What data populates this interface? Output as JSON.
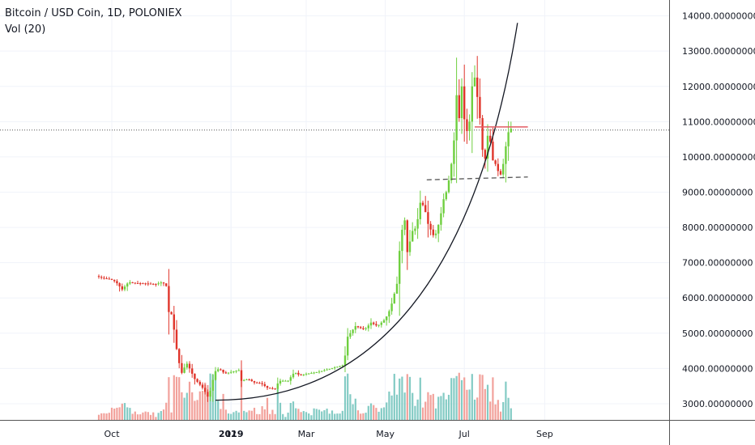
{
  "header": {
    "title": "Bitcoin / USD Coin, 1D, POLONIEX",
    "indicator": "Vol (20)"
  },
  "chart_data": {
    "type": "candlestick",
    "ylim": [
      2540,
      14450
    ],
    "y_ticks": [
      "14000.00000000",
      "13000.00000000",
      "12000.00000000",
      "11000.00000000",
      "10000.00000000",
      "9000.00000000",
      "8000.00000000",
      "7000.00000000",
      "6000.00000000",
      "5000.00000000",
      "4000.00000000",
      "3000.00000000"
    ],
    "x_ticks": [
      "Oct",
      "12",
      "2019",
      "Mar",
      "May",
      "Jul",
      "Sep"
    ],
    "bold_x_ticks": [
      "2019"
    ],
    "grid": true,
    "last_price": 10760,
    "colors": {
      "up": "#6fcf3f",
      "down": "#e0352b",
      "vol_up": "#83cbc4",
      "vol_down": "#f2a19b",
      "trend": "#131722",
      "resistance": "#e35b63",
      "support": "#555555"
    },
    "price_path": [
      [
        "Sep 20",
        6620
      ],
      [
        "Sep 25",
        6560
      ],
      [
        "Oct 1",
        6530
      ],
      [
        "Oct 5",
        6460
      ],
      [
        "Oct 10",
        6240
      ],
      [
        "Oct 15",
        6450
      ],
      [
        "Oct 20",
        6420
      ],
      [
        "Oct 28",
        6410
      ],
      [
        "Nov 5",
        6390
      ],
      [
        "Nov 10",
        6450
      ],
      [
        "Nov 14",
        6300
      ],
      [
        "Nov 15",
        5600
      ],
      [
        "Nov 18",
        5500
      ],
      [
        "Nov 20",
        4700
      ],
      [
        "Nov 22",
        4400
      ],
      [
        "Nov 24",
        3900
      ],
      [
        "Nov 26",
        3850
      ],
      [
        "Nov 28",
        4200
      ],
      [
        "Dec 1",
        4000
      ],
      [
        "Dec 5",
        3700
      ],
      [
        "Dec 10",
        3500
      ],
      [
        "Dec 12",
        3400
      ],
      [
        "Dec 15",
        3200
      ],
      [
        "Dec 18",
        3450
      ],
      [
        "Dec 20",
        3900
      ],
      [
        "Dec 24",
        4000
      ],
      [
        "Dec 28",
        3850
      ],
      [
        "Jan 2",
        3900
      ],
      [
        "Jan 8",
        3950
      ],
      [
        "Jan 10",
        3650
      ],
      [
        "Jan 15",
        3700
      ],
      [
        "Jan 20",
        3600
      ],
      [
        "Jan 25",
        3580
      ],
      [
        "Jan 30",
        3450
      ],
      [
        "Feb 5",
        3420
      ],
      [
        "Feb 8",
        3650
      ],
      [
        "Feb 15",
        3650
      ],
      [
        "Feb 20",
        3900
      ],
      [
        "Feb 24",
        3800
      ],
      [
        "Mar 1",
        3850
      ],
      [
        "Mar 10",
        3900
      ],
      [
        "Mar 20",
        4000
      ],
      [
        "Mar 30",
        4100
      ],
      [
        "Apr 2",
        4900
      ],
      [
        "Apr 8",
        5200
      ],
      [
        "Apr 15",
        5100
      ],
      [
        "Apr 20",
        5300
      ],
      [
        "Apr 25",
        5200
      ],
      [
        "May 1",
        5400
      ],
      [
        "May 5",
        5700
      ],
      [
        "May 10",
        6400
      ],
      [
        "May 13",
        7800
      ],
      [
        "May 16",
        8200
      ],
      [
        "May 18",
        7300
      ],
      [
        "May 22",
        7900
      ],
      [
        "May 25",
        8000
      ],
      [
        "May 28",
        8700
      ],
      [
        "May 31",
        8600
      ],
      [
        "Jun 3",
        8100
      ],
      [
        "Jun 8",
        7700
      ],
      [
        "Jun 12",
        8200
      ],
      [
        "Jun 15",
        8800
      ],
      [
        "Jun 18",
        9100
      ],
      [
        "Jun 21",
        9800
      ],
      [
        "Jun 24",
        10800
      ],
      [
        "Jun 26",
        12700
      ],
      [
        "Jun 27",
        11100
      ],
      [
        "Jun 29",
        12000
      ],
      [
        "Jul 2",
        10600
      ],
      [
        "Jul 5",
        11000
      ],
      [
        "Jul 8",
        12500
      ],
      [
        "Jul 10",
        12000
      ],
      [
        "Jul 12",
        11400
      ],
      [
        "Jul 14",
        10800
      ],
      [
        "Jul 15",
        10200
      ],
      [
        "Jul 16",
        9400
      ],
      [
        "Jul 18",
        10500
      ],
      [
        "Jul 20",
        10700
      ],
      [
        "Jul 23",
        9900
      ],
      [
        "Jul 25",
        9800
      ],
      [
        "Jul 28",
        9500
      ],
      [
        "Jul 30",
        9500
      ],
      [
        "Aug 1",
        10100
      ],
      [
        "Aug 4",
        10700
      ],
      [
        "Aug 6",
        10800
      ]
    ],
    "annotations": {
      "trend_curve": {
        "from": [
          "Dec 20",
          3100
        ],
        "to": [
          "Aug 10",
          13800
        ]
      },
      "resistance_line": {
        "from": [
          "Jul 8",
          10850
        ],
        "to": [
          "Aug 18",
          10850
        ]
      },
      "support_line": {
        "from": [
          "Jun 1",
          9350
        ],
        "to": [
          "Aug 18",
          9430
        ]
      }
    }
  }
}
